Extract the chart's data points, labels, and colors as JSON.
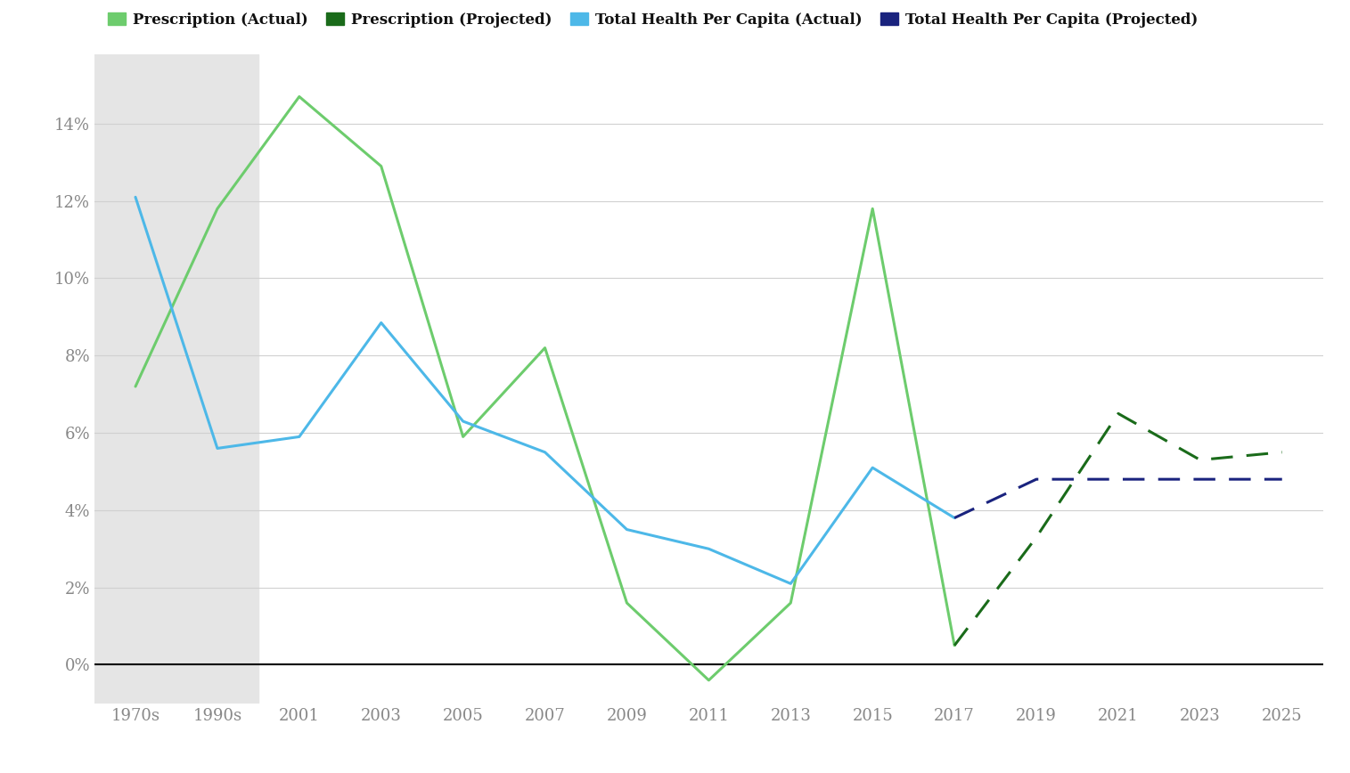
{
  "x_labels": [
    "1970s",
    "1990s",
    "2001",
    "2003",
    "2005",
    "2007",
    "2009",
    "2011",
    "2013",
    "2015",
    "2017",
    "2019",
    "2021",
    "2023",
    "2025"
  ],
  "prescription_actual_x": [
    0,
    1,
    2,
    3,
    4,
    5,
    6,
    7,
    8,
    9,
    10
  ],
  "prescription_actual_y": [
    7.2,
    11.8,
    14.7,
    12.9,
    5.9,
    8.2,
    1.6,
    -0.4,
    1.6,
    11.8,
    0.5
  ],
  "prescription_projected_x": [
    10,
    11,
    12,
    13,
    14
  ],
  "prescription_projected_y": [
    0.5,
    3.3,
    6.5,
    5.3,
    5.5
  ],
  "health_actual_x": [
    0,
    1,
    2,
    3,
    4,
    5,
    6,
    7,
    8,
    9,
    10
  ],
  "health_actual_y": [
    12.1,
    5.6,
    5.9,
    8.85,
    6.3,
    5.5,
    3.5,
    3.0,
    2.1,
    5.1,
    3.8
  ],
  "health_projected_x": [
    10,
    11,
    12,
    13,
    14
  ],
  "health_projected_y": [
    3.8,
    4.8,
    4.8,
    4.8,
    4.8
  ],
  "prescription_actual_color": "#6dcc6d",
  "prescription_projected_color": "#1a6b1a",
  "health_actual_color": "#4db8e8",
  "health_projected_color": "#1a237e",
  "shaded_xmin": -0.5,
  "shaded_xmax": 1.5,
  "y_ticks": [
    0,
    2,
    4,
    6,
    8,
    10,
    12,
    14
  ],
  "y_tick_labels": [
    "0%",
    "2%",
    "4%",
    "6%",
    "8%",
    "10%",
    "12%",
    "14%"
  ],
  "ylim_min": -1.0,
  "ylim_max": 15.8,
  "xlim_min": -0.5,
  "xlim_max": 14.5,
  "background_color": "#ffffff",
  "shaded_color": "#e5e5e5",
  "grid_color": "#d0d0d0",
  "zero_line_color": "#000000",
  "tick_label_color": "#888888",
  "legend_labels": [
    "Prescription (Actual)",
    "Prescription (Projected)",
    "Total Health Per Capita (Actual)",
    "Total Health Per Capita (Projected)"
  ],
  "legend_colors": [
    "#6dcc6d",
    "#1a6b1a",
    "#4db8e8",
    "#1a237e"
  ],
  "linewidth": 2.2,
  "font_family": "DejaVu Serif"
}
